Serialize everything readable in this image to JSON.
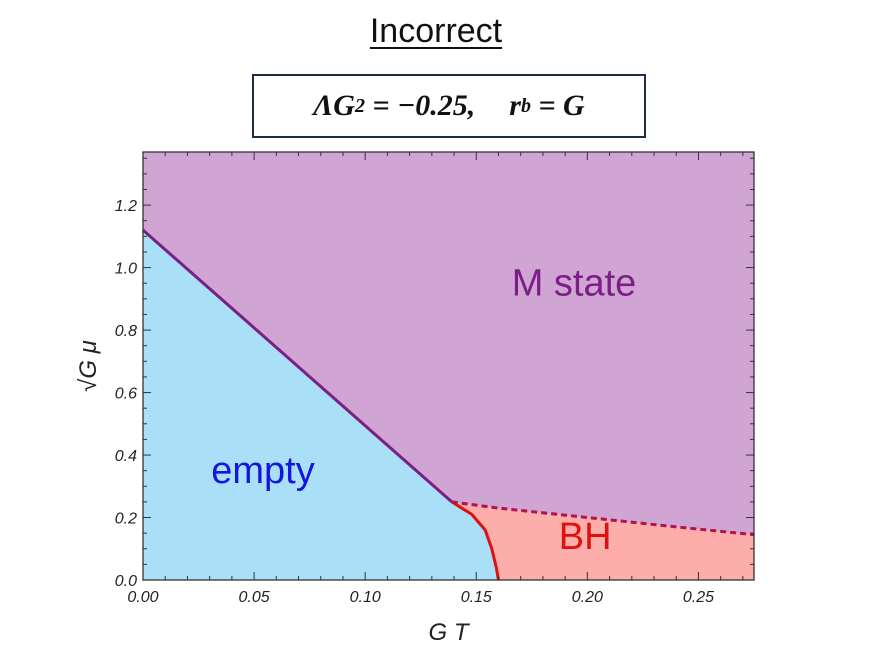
{
  "title": "Incorrect",
  "formula": "ΛG² = −0.25,    r_b = G",
  "formula_parts": {
    "lhs": "ΛG",
    "lhs_sup": "2",
    "eq1": " = −0.25,",
    "rhs": "r",
    "rhs_sub": "b",
    "eq2": " = G"
  },
  "chart_data": {
    "type": "area",
    "title": "Incorrect",
    "xlabel": "G T",
    "ylabel": "√G μ",
    "xlim": [
      0,
      0.275
    ],
    "ylim": [
      0,
      1.37
    ],
    "xticks": [
      {
        "value": 0.0,
        "label": "0.00"
      },
      {
        "value": 0.05,
        "label": "0.05"
      },
      {
        "value": 0.1,
        "label": "0.10"
      },
      {
        "value": 0.15,
        "label": "0.15"
      },
      {
        "value": 0.2,
        "label": "0.20"
      },
      {
        "value": 0.25,
        "label": "0.25"
      }
    ],
    "yticks": [
      {
        "value": 0.0,
        "label": "0.0"
      },
      {
        "value": 0.2,
        "label": "0.2"
      },
      {
        "value": 0.4,
        "label": "0.4"
      },
      {
        "value": 0.6,
        "label": "0.6"
      },
      {
        "value": 0.8,
        "label": "0.8"
      },
      {
        "value": 1.0,
        "label": "1.0"
      },
      {
        "value": 1.2,
        "label": "1.2"
      }
    ],
    "regions": [
      {
        "name": "M state",
        "color": "#d0a5d3",
        "label_color": "#7b1f86",
        "label_at": [
          0.194,
          0.91
        ]
      },
      {
        "name": "empty",
        "color": "#a9e0f7",
        "label_color": "#1515e0",
        "label_at": [
          0.054,
          0.31
        ]
      },
      {
        "name": "BH",
        "color": "#fdadaa",
        "label_color": "#e01010",
        "label_at": [
          0.199,
          0.1
        ]
      }
    ],
    "boundaries": [
      {
        "name": "empty–M state",
        "style": "solid",
        "color": "#7b1f86",
        "points": [
          [
            0.0,
            1.12
          ],
          [
            0.139,
            0.25
          ]
        ]
      },
      {
        "name": "empty–BH",
        "style": "solid",
        "color": "#e01010",
        "points": [
          [
            0.139,
            0.25
          ],
          [
            0.148,
            0.21
          ],
          [
            0.154,
            0.16
          ],
          [
            0.157,
            0.1
          ],
          [
            0.159,
            0.04
          ],
          [
            0.16,
            0.0
          ]
        ]
      },
      {
        "name": "BH–M state",
        "style": "dashed",
        "color": "#b0144a",
        "points": [
          [
            0.139,
            0.25
          ],
          [
            0.16,
            0.23
          ],
          [
            0.2,
            0.2
          ],
          [
            0.24,
            0.17
          ],
          [
            0.275,
            0.145
          ]
        ]
      }
    ],
    "grid": false
  }
}
